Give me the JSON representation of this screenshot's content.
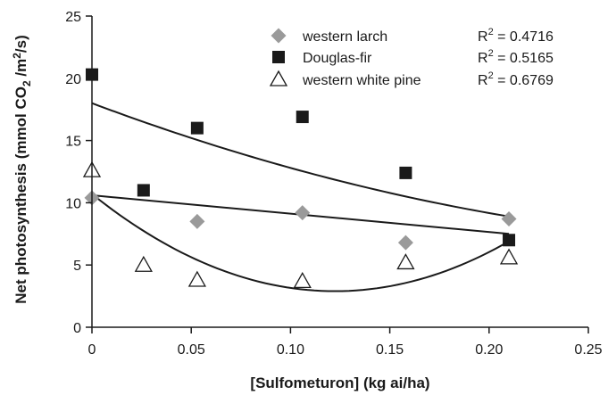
{
  "chart_data": {
    "type": "scatter",
    "title": "",
    "xlabel": "[Sulfometuron] (kg ai/ha)",
    "ylabel_parts": {
      "a": "Net photosynthesis (mmol CO",
      "sub": "2",
      "b": " /m",
      "sup": "2",
      "c": "/s)"
    },
    "xlim": [
      0,
      0.25
    ],
    "ylim": [
      0,
      25
    ],
    "x_ticks": [
      0,
      0.05,
      0.1,
      0.15,
      0.2,
      0.25
    ],
    "x_tick_labels": [
      "0",
      "0.05",
      "0.10",
      "0.15",
      "0.20",
      "0.25"
    ],
    "y_ticks": [
      0,
      5,
      10,
      15,
      20,
      25
    ],
    "y_tick_labels": [
      "0",
      "5",
      "10",
      "15",
      "20",
      "25"
    ],
    "legend_position": "top-right",
    "series": [
      {
        "name": "western larch",
        "marker": "diamond",
        "color": "#9a9a9a",
        "r2_prefix": "R",
        "r2_sup": "2",
        "r2_value": " = 0.4716",
        "x": [
          0,
          0.053,
          0.106,
          0.158,
          0.21
        ],
        "y": [
          10.4,
          8.5,
          9.2,
          6.8,
          8.7
        ],
        "fit": {
          "kind": "linear",
          "points": [
            [
              0,
              10.6
            ],
            [
              0.21,
              7.5
            ]
          ]
        }
      },
      {
        "name": "Douglas-fir",
        "marker": "square",
        "color": "#1a1a1a",
        "r2_prefix": "R",
        "r2_sup": "2",
        "r2_value": " = 0.5165",
        "x": [
          0,
          0.026,
          0.053,
          0.106,
          0.158,
          0.21
        ],
        "y": [
          20.3,
          11.0,
          16.0,
          16.9,
          12.4,
          7.0
        ],
        "fit": {
          "kind": "quadratic",
          "points": [
            [
              0,
              18.0
            ],
            [
              0.1,
              12.8
            ],
            [
              0.21,
              8.9
            ]
          ]
        }
      },
      {
        "name": "western white pine",
        "marker": "triangle-open",
        "color": "#1a1a1a",
        "r2_prefix": "R",
        "r2_sup": "2",
        "r2_value": " = 0.6769",
        "x": [
          0,
          0.026,
          0.053,
          0.106,
          0.158,
          0.21
        ],
        "y": [
          12.6,
          5.0,
          3.8,
          3.7,
          5.2,
          5.6
        ],
        "fit": {
          "kind": "quadratic",
          "points": [
            [
              0,
              10.7
            ],
            [
              0.12,
              2.9
            ],
            [
              0.21,
              6.9
            ]
          ]
        }
      }
    ]
  }
}
